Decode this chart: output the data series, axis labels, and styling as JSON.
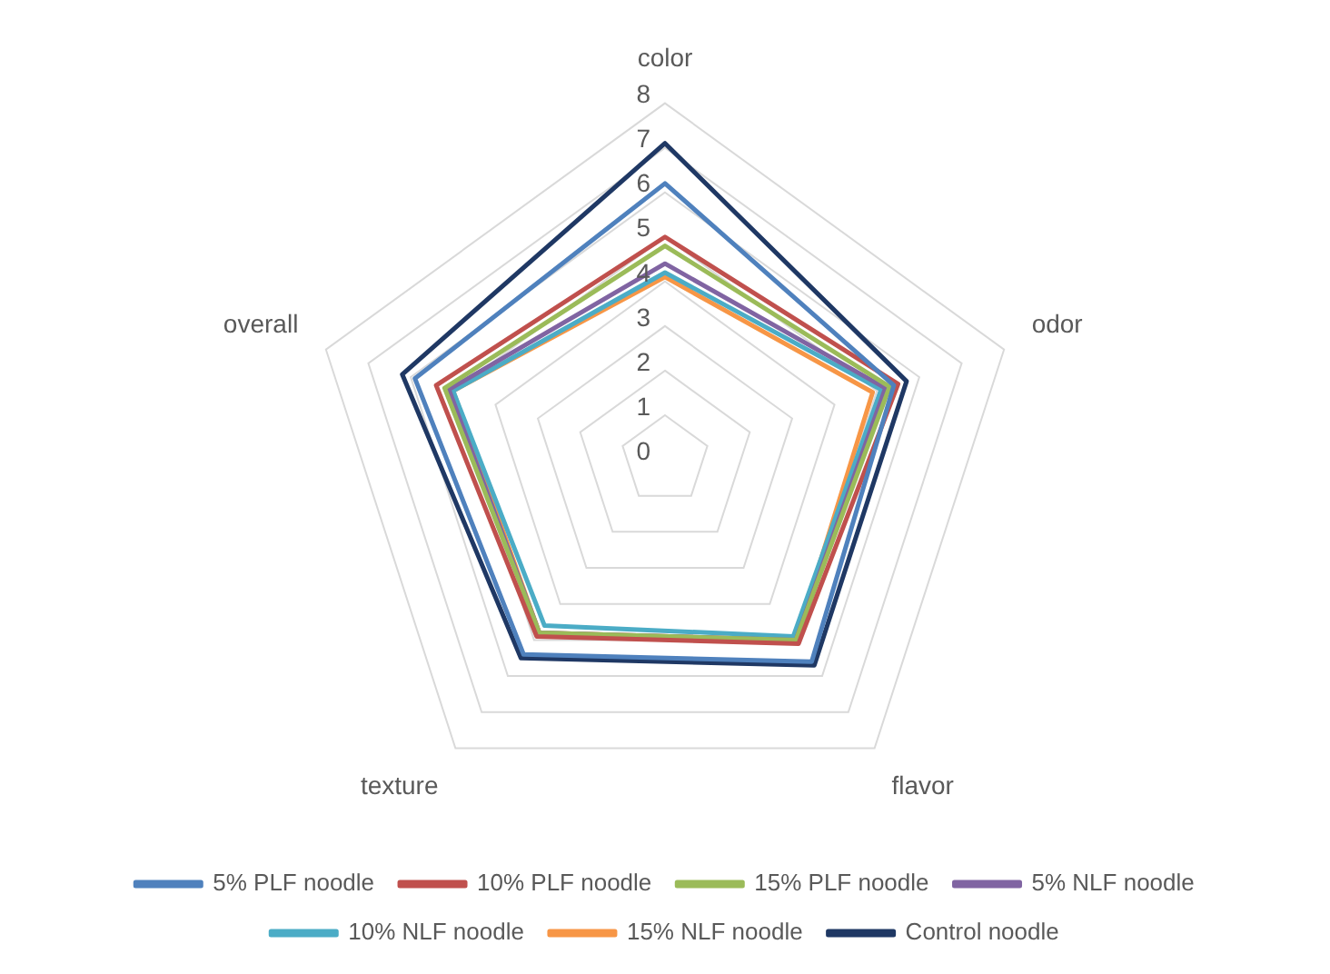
{
  "chart_data": {
    "type": "radar",
    "categories": [
      "color",
      "odor",
      "flavor",
      "texture",
      "overall"
    ],
    "series": [
      {
        "name": "5% PLF noodle",
        "color": "#4f81bd",
        "values": [
          6.2,
          5.4,
          5.6,
          5.4,
          5.9
        ]
      },
      {
        "name": "10% PLF noodle",
        "color": "#c0504d",
        "values": [
          5.0,
          5.5,
          5.1,
          4.9,
          5.4
        ]
      },
      {
        "name": "15% PLF noodle",
        "color": "#9bbb59",
        "values": [
          4.8,
          5.3,
          5.0,
          4.8,
          5.2
        ]
      },
      {
        "name": "5% NLF noodle",
        "color": "#8064a2",
        "values": [
          4.4,
          5.2,
          5.0,
          4.8,
          5.1
        ]
      },
      {
        "name": "10% NLF noodle",
        "color": "#4bacc6",
        "values": [
          4.2,
          5.1,
          4.9,
          4.6,
          5.0
        ]
      },
      {
        "name": "15% NLF noodle",
        "color": "#f79646",
        "values": [
          4.1,
          4.9,
          5.0,
          4.8,
          5.0
        ]
      },
      {
        "name": "Control noodle",
        "color": "#1f3864",
        "values": [
          7.1,
          5.7,
          5.7,
          5.5,
          6.2
        ]
      }
    ],
    "ylim": [
      0,
      8
    ],
    "yticks": [
      0,
      1,
      2,
      3,
      4,
      5,
      6,
      7,
      8
    ],
    "grid": true,
    "legend": "bottom",
    "marker": "none",
    "line_style": "solid"
  }
}
